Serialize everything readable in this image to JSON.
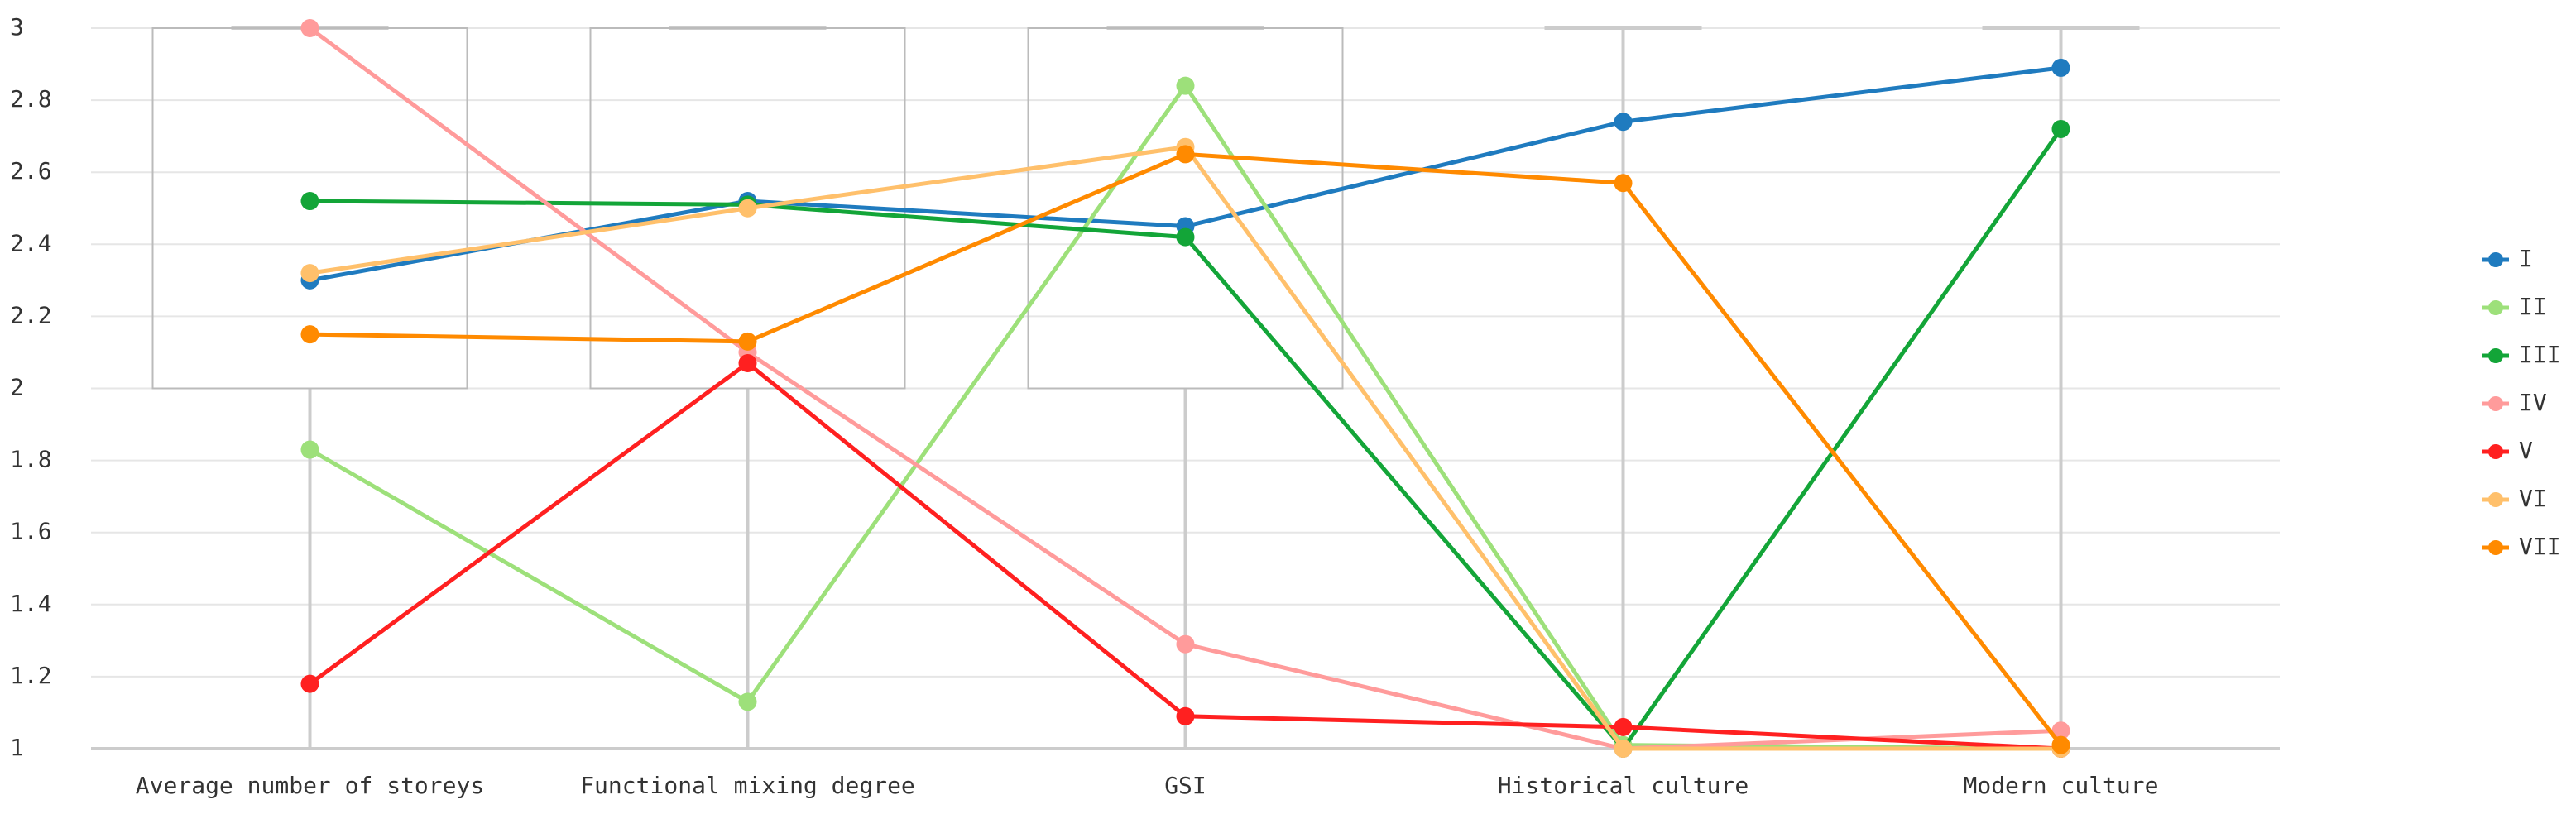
{
  "chart_data": {
    "type": "line",
    "categories": [
      "Average number of storeys",
      "Functional mixing degree",
      "GSI",
      "Historical culture",
      "Modern culture"
    ],
    "boxes": [
      {
        "min": 1,
        "q1": 2,
        "q3": 3,
        "max": 3
      },
      {
        "min": 1,
        "q1": 2,
        "q3": 3,
        "max": 3
      },
      {
        "min": 1,
        "q1": 2,
        "q3": 3,
        "max": 3
      },
      {
        "min": 1,
        "q1": 1,
        "q3": 1,
        "max": 3
      },
      {
        "min": 1,
        "q1": 1,
        "q3": 1,
        "max": 3
      }
    ],
    "series": [
      {
        "name": "I",
        "color": "#1f7bbf",
        "values": [
          2.3,
          2.52,
          2.45,
          2.74,
          2.89
        ]
      },
      {
        "name": "II",
        "color": "#9de07a",
        "values": [
          1.83,
          1.13,
          2.84,
          1.01,
          1.0
        ]
      },
      {
        "name": "III",
        "color": "#13a538",
        "values": [
          2.52,
          2.51,
          2.42,
          1.0,
          2.72
        ]
      },
      {
        "name": "IV",
        "color": "#ff9b9b",
        "values": [
          3.0,
          2.1,
          1.29,
          1.0,
          1.05
        ]
      },
      {
        "name": "V",
        "color": "#ff2020",
        "values": [
          1.18,
          2.07,
          1.09,
          1.06,
          1.0
        ]
      },
      {
        "name": "VI",
        "color": "#ffc06b",
        "values": [
          2.32,
          2.5,
          2.67,
          1.0,
          1.0
        ]
      },
      {
        "name": "VII",
        "color": "#ff8a00",
        "values": [
          2.15,
          2.13,
          2.65,
          2.57,
          1.01
        ]
      }
    ],
    "ylim": [
      1,
      3
    ],
    "yticks": [
      1,
      1.2,
      1.4,
      1.6,
      1.8,
      2,
      2.2,
      2.4,
      2.6,
      2.8,
      3
    ],
    "grid": true,
    "legend": "right"
  }
}
